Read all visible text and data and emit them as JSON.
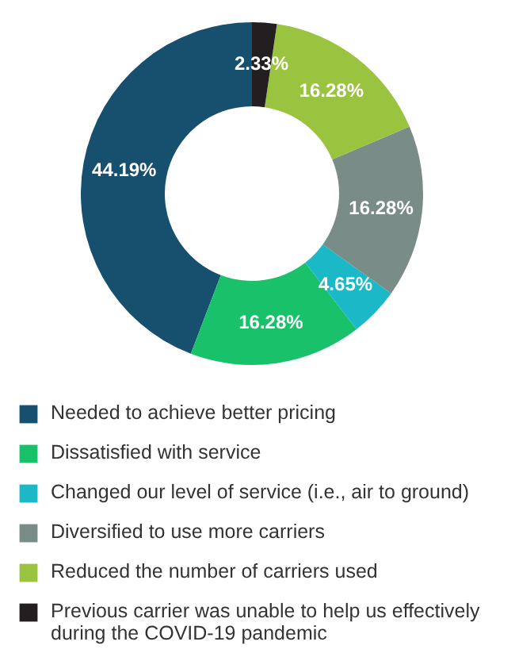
{
  "chart_data": {
    "type": "donut",
    "categories": [
      "Needed to achieve better pricing",
      "Dissatisfied with service",
      "Changed our level of service (i.e., air to ground)",
      "Diversified to use more carriers",
      "Reduced the number of carriers used",
      "Previous carrier was unable to help us effectively during the COVID-19 pandemic"
    ],
    "values": [
      44.19,
      16.28,
      4.65,
      16.28,
      16.28,
      2.33
    ],
    "value_labels": [
      "44.19%",
      "16.28%",
      "4.65%",
      "16.28%",
      "16.28%",
      "2.33%"
    ],
    "colors": [
      "#17506e",
      "#19c16a",
      "#1bb8c8",
      "#7a8c88",
      "#9ac33f",
      "#231f20"
    ],
    "legend": "bottom"
  }
}
